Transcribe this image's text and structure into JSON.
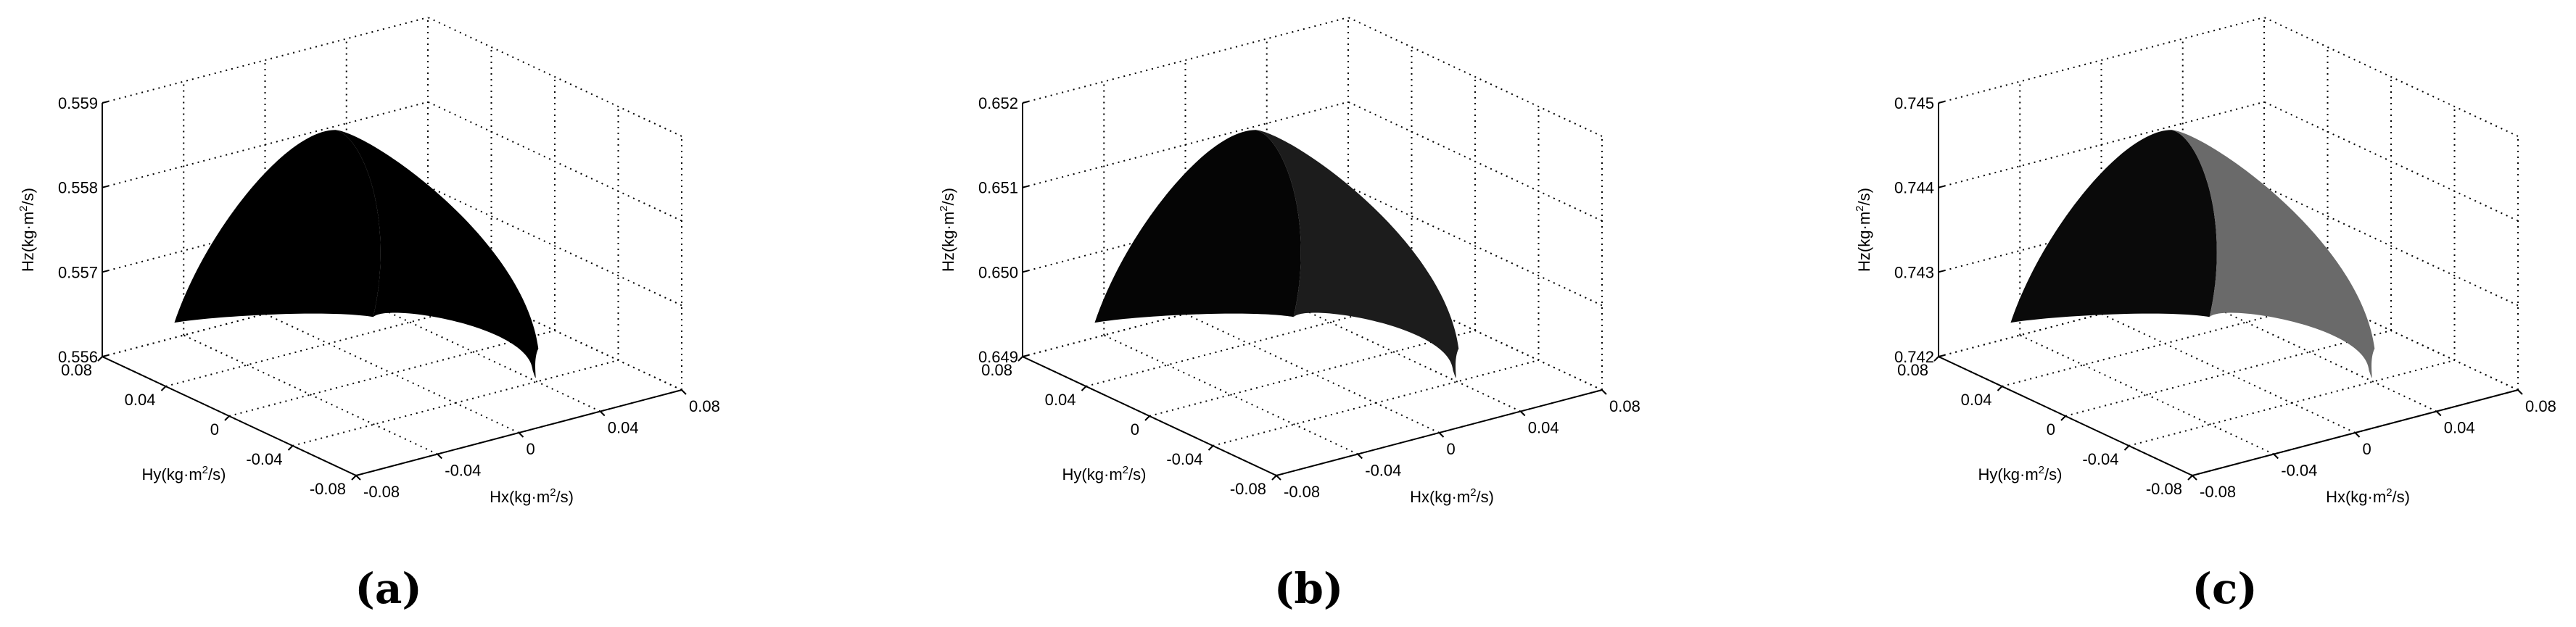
{
  "chart_data": [
    {
      "type": "surface3d",
      "caption": "(a)",
      "xlabel": {
        "base": "Hx(kg·m",
        "sup": "2",
        "tail": "/s)"
      },
      "ylabel": {
        "base": "Hy(kg·m",
        "sup": "2",
        "tail": "/s)"
      },
      "zlabel": {
        "base": "Hz(kg·m",
        "sup": "2",
        "tail": "/s)"
      },
      "xticks": [
        "-0.08",
        "-0.04",
        "0",
        "0.04",
        "0.08"
      ],
      "yticks": [
        "-0.08",
        "-0.04",
        "0",
        "0.04",
        "0.08"
      ],
      "zticks": [
        "0.556",
        "0.557",
        "0.558",
        "0.559"
      ],
      "xlim": [
        -0.08,
        0.08
      ],
      "ylim": [
        -0.08,
        0.08
      ],
      "zlim": [
        0.556,
        0.559
      ],
      "grid": true,
      "surface_shading": {
        "left_face": "#000000",
        "right_face": "#000000"
      }
    },
    {
      "type": "surface3d",
      "caption": "(b)",
      "xlabel": {
        "base": "Hx(kg·m",
        "sup": "2",
        "tail": "/s)"
      },
      "ylabel": {
        "base": "Hy(kg·m",
        "sup": "2",
        "tail": "/s)"
      },
      "zlabel": {
        "base": "Hz(kg·m",
        "sup": "2",
        "tail": "/s)"
      },
      "xticks": [
        "-0.08",
        "-0.04",
        "0",
        "0.04",
        "0.08"
      ],
      "yticks": [
        "-0.08",
        "-0.04",
        "0",
        "0.04",
        "0.08"
      ],
      "zticks": [
        "0.649",
        "0.650",
        "0.651",
        "0.652"
      ],
      "xlim": [
        -0.08,
        0.08
      ],
      "ylim": [
        -0.08,
        0.08
      ],
      "zlim": [
        0.649,
        0.652
      ],
      "grid": true,
      "surface_shading": {
        "left_face": "#050505",
        "right_face": "#1c1c1c"
      }
    },
    {
      "type": "surface3d",
      "caption": "(c)",
      "xlabel": {
        "base": "Hx(kg·m",
        "sup": "2",
        "tail": "/s)"
      },
      "ylabel": {
        "base": "Hy(kg·m",
        "sup": "2",
        "tail": "/s)"
      },
      "zlabel": {
        "base": "Hz(kg·m",
        "sup": "2",
        "tail": "/s)"
      },
      "xticks": [
        "-0.08",
        "-0.04",
        "0",
        "0.04",
        "0.08"
      ],
      "yticks": [
        "-0.08",
        "-0.04",
        "0",
        "0.04",
        "0.08"
      ],
      "zticks": [
        "0.742",
        "0.743",
        "0.744",
        "0.745"
      ],
      "xlim": [
        -0.08,
        0.08
      ],
      "ylim": [
        -0.08,
        0.08
      ],
      "zlim": [
        0.742,
        0.745
      ],
      "grid": true,
      "surface_shading": {
        "left_face": "#0a0a0a",
        "right_face": "#6a6a6a"
      }
    }
  ]
}
